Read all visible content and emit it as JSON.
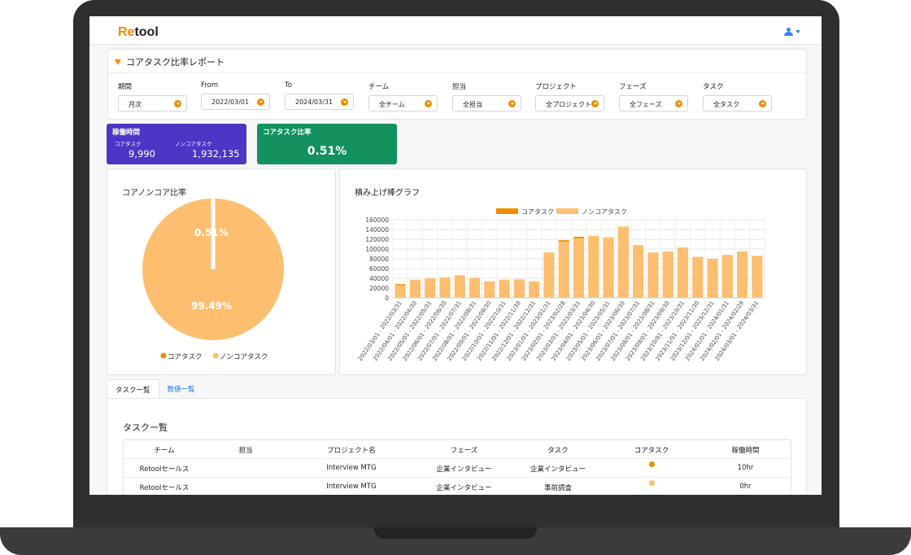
{
  "app": {
    "logo_prefix": "Re",
    "logo_suffix": "tool"
  },
  "report": {
    "title": "コアタスク比率レポート"
  },
  "filters": [
    {
      "label": "期間",
      "value": "月次"
    },
    {
      "label": "From",
      "value": "2022/03/01"
    },
    {
      "label": "To",
      "value": "2024/03/31"
    },
    {
      "label": "チーム",
      "value": "全チーム"
    },
    {
      "label": "担当",
      "value": "全担当"
    },
    {
      "label": "プロジェクト",
      "value": "全プロジェクト"
    },
    {
      "label": "フェーズ",
      "value": "全フェーズ"
    },
    {
      "label": "タスク",
      "value": "全タスク"
    }
  ],
  "stats": {
    "hours_title": "稼働時間",
    "core_label": "コアタスク",
    "core_value": "9,990",
    "noncore_label": "ノンコアタスク",
    "noncore_value": "1,932,135",
    "ratio_title": "コアタスク比率",
    "ratio_value": "0.51%"
  },
  "colors": {
    "core": "#f08c00",
    "noncore": "#fdbf6f",
    "purple": "#4c36c4",
    "green": "#13915e"
  },
  "pie": {
    "title": "コアノンコア比率",
    "legend_core": "コアタスク",
    "legend_noncore": "ノンコアタスク",
    "label_core": "0.51%",
    "label_noncore": "99.49%"
  },
  "chart_data": {
    "type": "bar",
    "title": "積み上げ棒グラフ",
    "legend": [
      "コアタスク",
      "ノンコアタスク"
    ],
    "categories": [
      "2022/03/01 - 2022/03/31",
      "2022/04/01 - 2022/04/30",
      "2022/05/01 - 2022/05/31",
      "2022/06/01 - 2022/06/30",
      "2022/07/01 - 2022/07/31",
      "2022/08/01 - 2022/08/31",
      "2022/09/01 - 2022/09/30",
      "2022/10/01 - 2022/10/31",
      "2022/11/01 - 2022/11/30",
      "2022/12/01 - 2022/12/31",
      "2023/01/01 - 2023/01/31",
      "2023/02/01 - 2023/02/28",
      "2023/03/01 - 2023/03/31",
      "2023/04/01 - 2023/04/30",
      "2023/05/01 - 2023/05/31",
      "2023/06/01 - 2023/06/30",
      "2023/07/01 - 2023/07/31",
      "2023/08/01 - 2023/08/31",
      "2023/09/01 - 2023/09/30",
      "2023/10/01 - 2023/10/31",
      "2023/11/01 - 2023/11/30",
      "2023/12/01 - 2023/12/31",
      "2024/01/01 - 2024/01/31",
      "2024/02/01 - 2024/02/29",
      "2024/03/01 - 2024/03/31"
    ],
    "series": [
      {
        "name": "コアタスク",
        "values": [
          2000,
          0,
          0,
          0,
          0,
          0,
          0,
          0,
          0,
          0,
          0,
          3000,
          3000,
          0,
          0,
          0,
          0,
          0,
          0,
          0,
          0,
          0,
          0,
          0,
          0
        ]
      },
      {
        "name": "ノンコアタスク",
        "values": [
          26000,
          37000,
          40000,
          42000,
          46000,
          41000,
          34000,
          37000,
          38000,
          34000,
          93000,
          115000,
          122000,
          127000,
          124000,
          146000,
          108000,
          93000,
          95000,
          103000,
          84000,
          80000,
          88000,
          95000,
          86000
        ]
      }
    ],
    "yticks": [
      "0",
      "20000",
      "40000",
      "60000",
      "80000",
      "100000",
      "120000",
      "140000",
      "160000"
    ],
    "ylim": [
      0,
      160000
    ],
    "stacked": true,
    "legend_position": "top"
  },
  "tabs": [
    {
      "label": "タスク一覧"
    },
    {
      "label": "数値一覧"
    }
  ],
  "table": {
    "title": "タスク一覧",
    "headers": [
      "チーム",
      "担当",
      "プロジェクト名",
      "フェーズ",
      "タスク",
      "コアタスク",
      "稼働時間"
    ],
    "rows": [
      {
        "team": "Retoolセールス",
        "owner": "",
        "project": "Interview MTG",
        "phase": "企業インタビュー",
        "task": "企業インタビュー",
        "core": "core",
        "hours": "10hr"
      },
      {
        "team": "Retoolセールス",
        "owner": "",
        "project": "Interview MTG",
        "phase": "企業インタビュー",
        "task": "事前調査",
        "core": "noncore",
        "hours": "0hr"
      }
    ]
  }
}
